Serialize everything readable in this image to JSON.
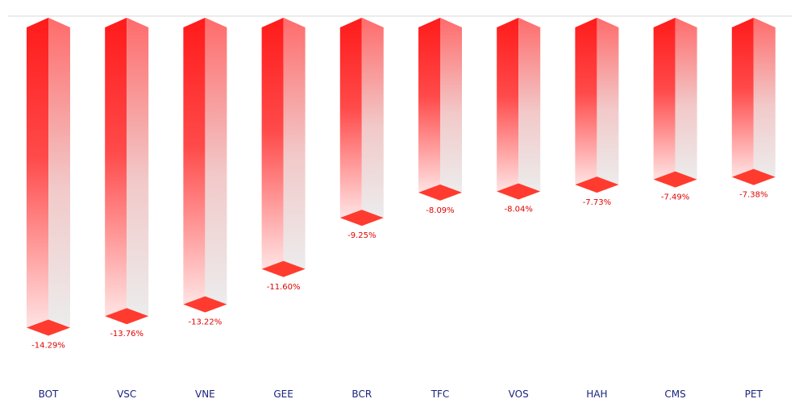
{
  "chart_data": {
    "type": "bar",
    "style": "3d-inverted-bars",
    "categories": [
      "BOT",
      "VSC",
      "VNE",
      "GEE",
      "BCR",
      "TFC",
      "VOS",
      "HAH",
      "CMS",
      "PET"
    ],
    "values": [
      -14.29,
      -13.76,
      -13.22,
      -11.6,
      -9.25,
      -8.09,
      -8.04,
      -7.73,
      -7.49,
      -7.38
    ],
    "value_labels": [
      "-14.29%",
      "-13.76%",
      "-13.22%",
      "-11.60%",
      "-9.25%",
      "-8.09%",
      "-8.04%",
      "-7.73%",
      "-7.49%",
      "-7.38%"
    ],
    "ylim": [
      -15.5,
      0
    ],
    "grid": false,
    "legend": "none",
    "title": "",
    "xlabel": "",
    "ylabel": ""
  },
  "colors": {
    "bar_top": "#ff1a1a",
    "bar_side_top": "#ff6b6b",
    "bar_fade": "#ececec",
    "bar_cap": "#ff3b2f",
    "value_label": "#e00000",
    "category_label": "#1a237e",
    "baseline": "#d9d9d9"
  }
}
